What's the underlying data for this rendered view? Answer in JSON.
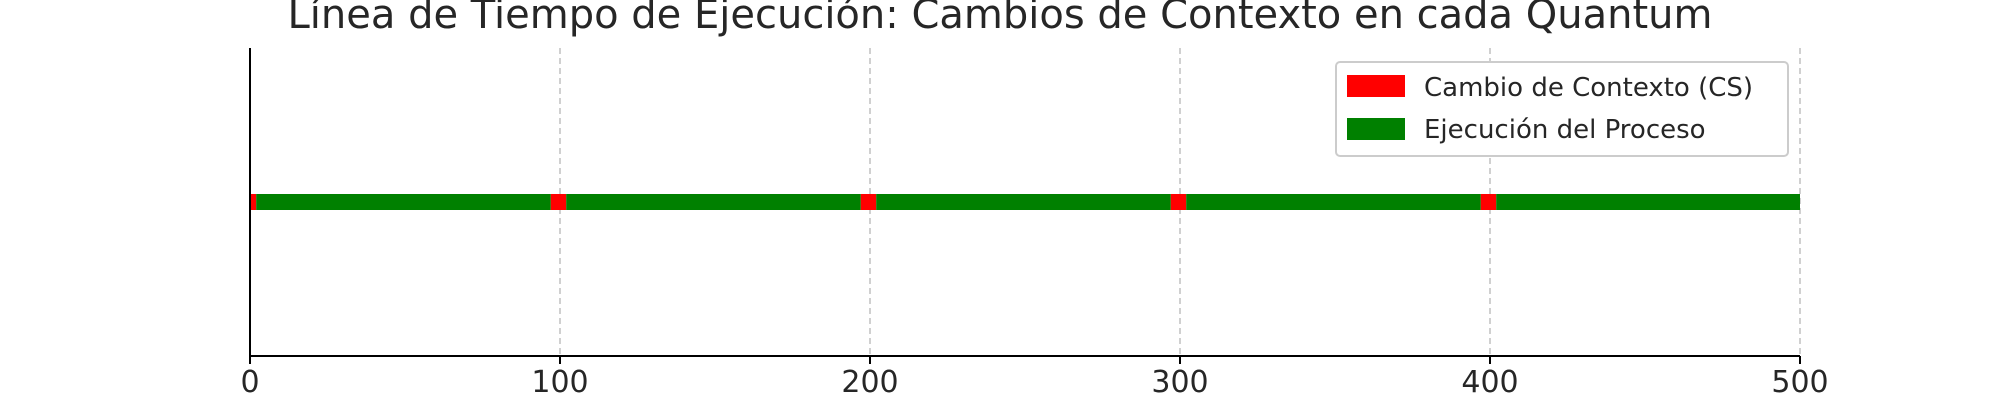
{
  "chart_data": {
    "type": "bar",
    "orientation": "horizontal-timeline",
    "title": "Línea de Tiempo de Ejecución: Cambios de Contexto en cada Quantum",
    "xlabel": "",
    "ylabel": "",
    "xlim": [
      0,
      500
    ],
    "x_ticks": [
      0,
      100,
      200,
      300,
      400,
      500
    ],
    "x_tick_labels": [
      "0",
      "100",
      "200",
      "300",
      "400",
      "500"
    ],
    "grid": "x-dashed",
    "legend_placement": "top-right",
    "series": [
      {
        "name": "Cambio de Contexto (CS)",
        "color": "#ff0000",
        "segments": [
          [
            0,
            2
          ],
          [
            97,
            5
          ],
          [
            197,
            5
          ],
          [
            297,
            5
          ],
          [
            397,
            5
          ]
        ]
      },
      {
        "name": "Ejecución del Proceso",
        "color": "#008000",
        "segments": [
          [
            2,
            95
          ],
          [
            102,
            95
          ],
          [
            202,
            95
          ],
          [
            302,
            95
          ],
          [
            402,
            98
          ]
        ]
      }
    ]
  }
}
